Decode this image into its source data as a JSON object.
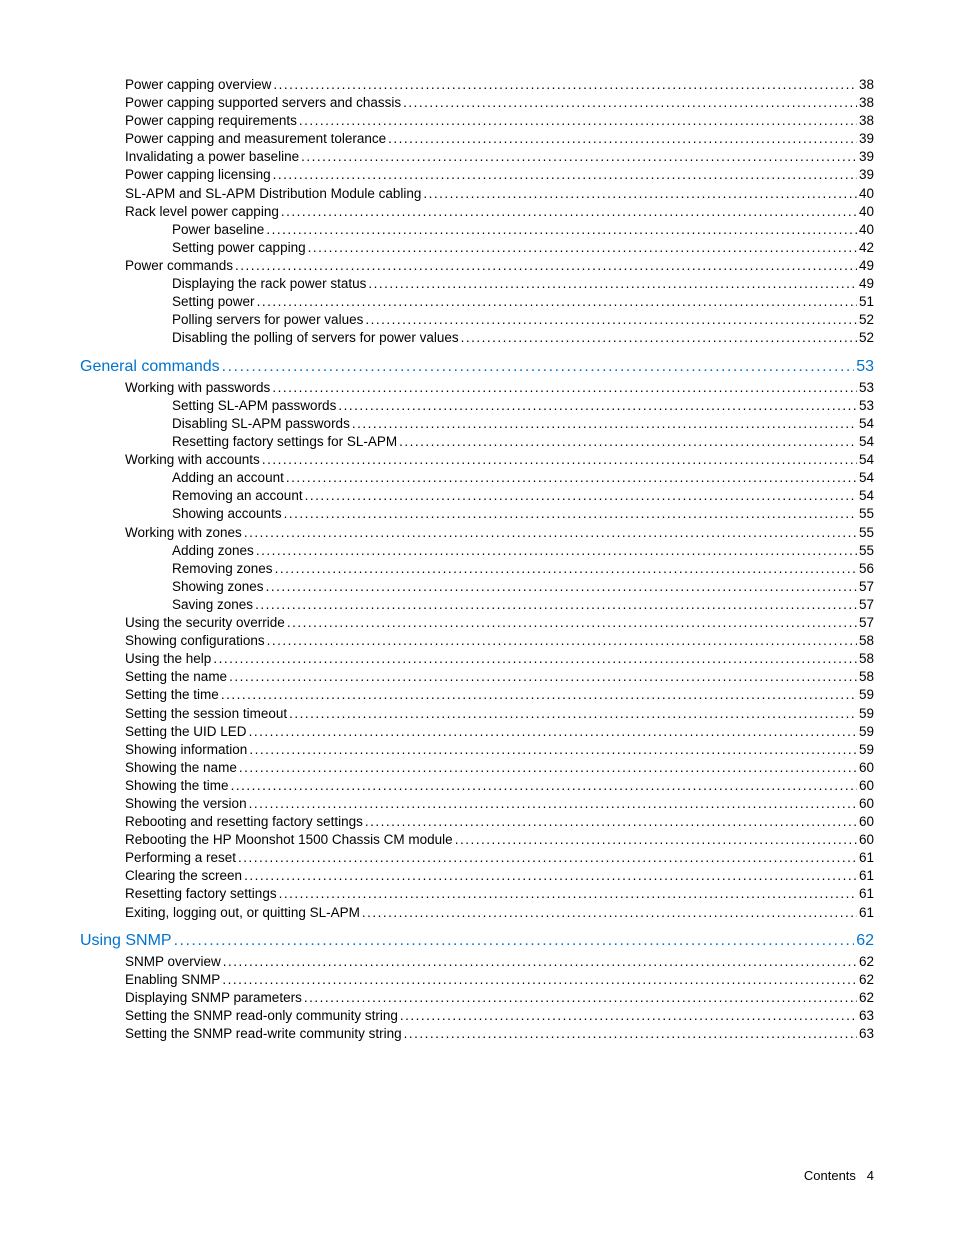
{
  "colors": {
    "text": "#000000",
    "link": "#0073cf",
    "background": "#ffffff"
  },
  "typography": {
    "body_fontsize_pt": 10,
    "section_fontsize_pt": 12,
    "font_family": "Futura / Century Gothic style sans-serif"
  },
  "footer": {
    "label": "Contents",
    "page": "4"
  },
  "toc": [
    {
      "level": 1,
      "title": "Power capping overview",
      "page": "38"
    },
    {
      "level": 1,
      "title": "Power capping supported servers and chassis",
      "page": "38"
    },
    {
      "level": 1,
      "title": "Power capping requirements",
      "page": "38"
    },
    {
      "level": 1,
      "title": "Power capping and measurement tolerance",
      "page": "39"
    },
    {
      "level": 1,
      "title": "Invalidating a power baseline",
      "page": "39"
    },
    {
      "level": 1,
      "title": "Power capping licensing",
      "page": "39"
    },
    {
      "level": 1,
      "title": "SL-APM and SL-APM Distribution Module cabling",
      "page": "40"
    },
    {
      "level": 1,
      "title": "Rack level power capping",
      "page": "40"
    },
    {
      "level": 2,
      "title": "Power baseline",
      "page": "40"
    },
    {
      "level": 2,
      "title": "Setting power capping",
      "page": "42"
    },
    {
      "level": 1,
      "title": "Power commands",
      "page": "49"
    },
    {
      "level": 2,
      "title": "Displaying the rack power status",
      "page": "49"
    },
    {
      "level": 2,
      "title": "Setting power",
      "page": "51"
    },
    {
      "level": 2,
      "title": "Polling servers for power values",
      "page": "52"
    },
    {
      "level": 2,
      "title": "Disabling the polling of servers for power values",
      "page": "52"
    },
    {
      "level": 0,
      "title": "General commands",
      "page": "53",
      "link": true
    },
    {
      "level": 1,
      "title": "Working with passwords",
      "page": "53"
    },
    {
      "level": 2,
      "title": "Setting SL-APM passwords",
      "page": "53"
    },
    {
      "level": 2,
      "title": "Disabling SL-APM passwords",
      "page": "54"
    },
    {
      "level": 2,
      "title": "Resetting factory settings for SL-APM",
      "page": "54"
    },
    {
      "level": 1,
      "title": "Working with accounts",
      "page": "54"
    },
    {
      "level": 2,
      "title": "Adding an account",
      "page": "54"
    },
    {
      "level": 2,
      "title": "Removing an account",
      "page": "54"
    },
    {
      "level": 2,
      "title": "Showing accounts",
      "page": "55"
    },
    {
      "level": 1,
      "title": "Working with zones",
      "page": "55"
    },
    {
      "level": 2,
      "title": "Adding zones",
      "page": "55"
    },
    {
      "level": 2,
      "title": "Removing zones",
      "page": "56"
    },
    {
      "level": 2,
      "title": "Showing zones",
      "page": "57"
    },
    {
      "level": 2,
      "title": "Saving zones",
      "page": "57"
    },
    {
      "level": 1,
      "title": "Using the security override",
      "page": "57"
    },
    {
      "level": 1,
      "title": "Showing configurations",
      "page": "58"
    },
    {
      "level": 1,
      "title": "Using the help",
      "page": "58"
    },
    {
      "level": 1,
      "title": "Setting the name",
      "page": "58"
    },
    {
      "level": 1,
      "title": "Setting the time",
      "page": "59"
    },
    {
      "level": 1,
      "title": "Setting the session timeout",
      "page": "59"
    },
    {
      "level": 1,
      "title": "Setting the UID LED",
      "page": "59"
    },
    {
      "level": 1,
      "title": "Showing information",
      "page": "59"
    },
    {
      "level": 1,
      "title": "Showing the name",
      "page": "60"
    },
    {
      "level": 1,
      "title": "Showing the time",
      "page": "60"
    },
    {
      "level": 1,
      "title": "Showing the version",
      "page": "60"
    },
    {
      "level": 1,
      "title": "Rebooting and resetting factory settings",
      "page": "60"
    },
    {
      "level": 1,
      "title": "Rebooting the HP Moonshot 1500 Chassis CM module",
      "page": "60"
    },
    {
      "level": 1,
      "title": "Performing a reset",
      "page": "61"
    },
    {
      "level": 1,
      "title": "Clearing the screen",
      "page": "61"
    },
    {
      "level": 1,
      "title": "Resetting factory settings",
      "page": "61"
    },
    {
      "level": 1,
      "title": "Exiting, logging out, or quitting SL-APM",
      "page": "61"
    },
    {
      "level": 0,
      "title": "Using SNMP",
      "page": "62",
      "link": true
    },
    {
      "level": 1,
      "title": "SNMP overview",
      "page": "62"
    },
    {
      "level": 1,
      "title": "Enabling SNMP",
      "page": "62"
    },
    {
      "level": 1,
      "title": "Displaying SNMP parameters",
      "page": "62"
    },
    {
      "level": 1,
      "title": "Setting the SNMP read-only community string",
      "page": "63"
    },
    {
      "level": 1,
      "title": "Setting the SNMP read-write community string",
      "page": "63"
    }
  ]
}
